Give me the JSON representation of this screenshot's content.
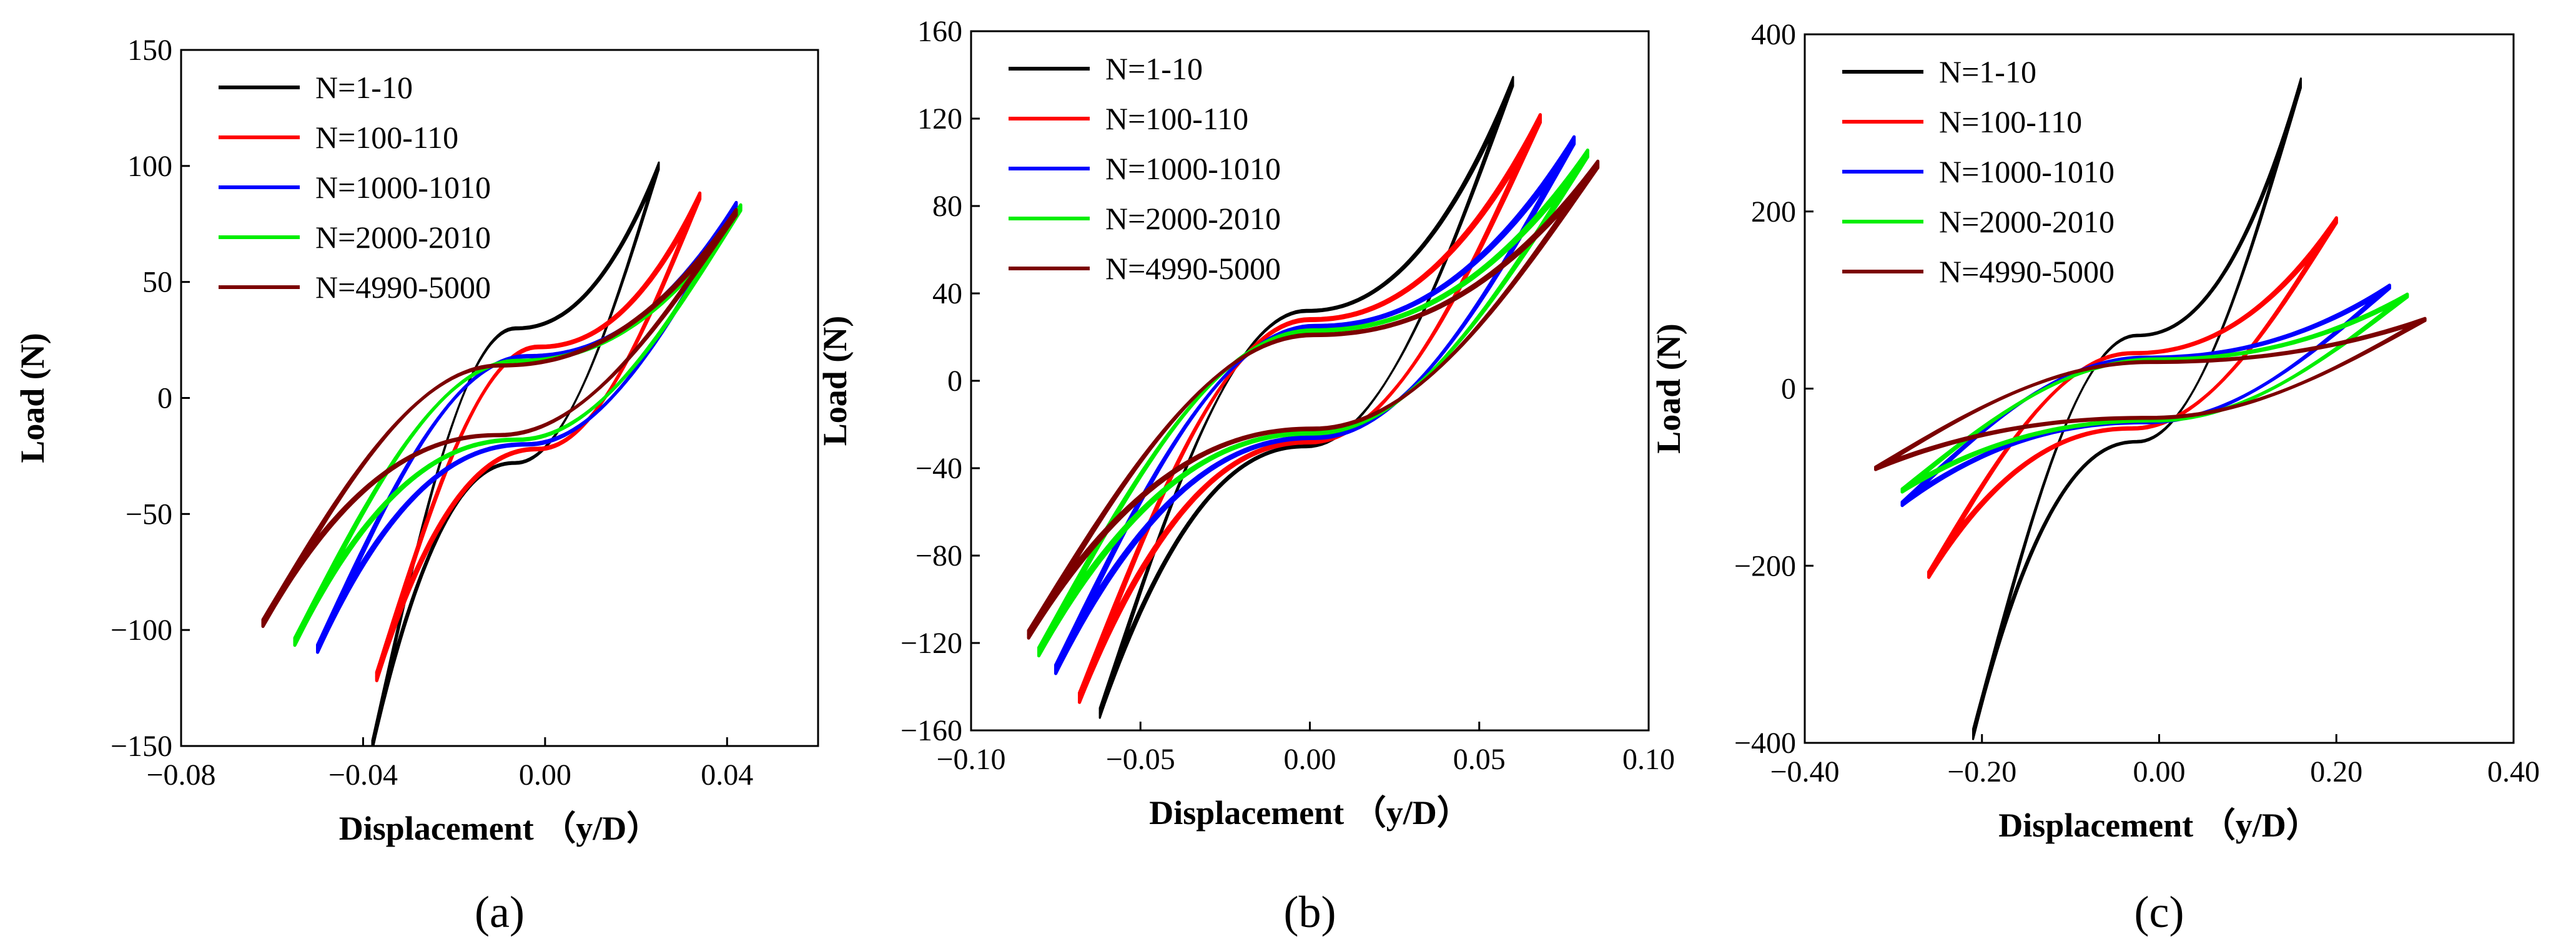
{
  "chart_data": [
    {
      "type": "line",
      "panel_label": "(a)",
      "xlabel": "Displacement （y/D）",
      "ylabel": "Load (N)",
      "xlim": [
        -0.08,
        0.06
      ],
      "ylim": [
        -150,
        150
      ],
      "x_ticks": [
        -0.08,
        -0.04,
        0.0,
        0.04
      ],
      "x_tick_labels": [
        "−0.08",
        "−0.04",
        "0.00",
        "0.04"
      ],
      "y_ticks": [
        -150,
        -100,
        -50,
        0,
        50,
        100,
        150
      ],
      "y_tick_labels": [
        "−150",
        "−100",
        "−50",
        "0",
        "50",
        "100",
        "150"
      ],
      "legend_position": "top-left",
      "series": [
        {
          "name": "N=1-10",
          "color": "#000000",
          "loop": {
            "x_min": -0.038,
            "x_max": 0.025,
            "y_max": 100,
            "y_min": -150,
            "upper_mid": 30,
            "lower_mid": -28
          }
        },
        {
          "name": "N=100-110",
          "color": "#ff0000",
          "loop": {
            "x_min": -0.037,
            "x_max": 0.034,
            "y_max": 87,
            "y_min": -120,
            "upper_mid": 22,
            "lower_mid": -22
          }
        },
        {
          "name": "N=1000-1010",
          "color": "#0000ff",
          "loop": {
            "x_min": -0.05,
            "x_max": 0.042,
            "y_max": 83,
            "y_min": -108,
            "upper_mid": 18,
            "lower_mid": -20
          }
        },
        {
          "name": "N=2000-2010",
          "color": "#00ee00",
          "loop": {
            "x_min": -0.055,
            "x_max": 0.043,
            "y_max": 82,
            "y_min": -105,
            "upper_mid": 16,
            "lower_mid": -18
          }
        },
        {
          "name": "N=4990-5000",
          "color": "#7b0000",
          "loop": {
            "x_min": -0.062,
            "x_max": 0.042,
            "y_max": 80,
            "y_min": -97,
            "upper_mid": 14,
            "lower_mid": -16
          }
        }
      ]
    },
    {
      "type": "line",
      "panel_label": "(b)",
      "xlabel": "Displacement （y/D）",
      "ylabel": "Load (N)",
      "xlim": [
        -0.1,
        0.1
      ],
      "ylim": [
        -160,
        160
      ],
      "x_ticks": [
        -0.1,
        -0.05,
        0.0,
        0.05,
        0.1
      ],
      "x_tick_labels": [
        "−0.10",
        "−0.05",
        "0.00",
        "0.05",
        "0.10"
      ],
      "y_ticks": [
        -160,
        -120,
        -80,
        -40,
        0,
        40,
        80,
        120,
        160
      ],
      "y_tick_labels": [
        "−160",
        "−120",
        "−80",
        "−40",
        "0",
        "40",
        "80",
        "120",
        "160"
      ],
      "legend_position": "top-left",
      "series": [
        {
          "name": "N=1-10",
          "color": "#000000",
          "loop": {
            "x_min": -0.062,
            "x_max": 0.06,
            "y_max": 137,
            "y_min": -152,
            "upper_mid": 32,
            "lower_mid": -30
          }
        },
        {
          "name": "N=100-110",
          "color": "#ff0000",
          "loop": {
            "x_min": -0.068,
            "x_max": 0.068,
            "y_max": 120,
            "y_min": -145,
            "upper_mid": 28,
            "lower_mid": -28
          }
        },
        {
          "name": "N=1000-1010",
          "color": "#0000ff",
          "loop": {
            "x_min": -0.075,
            "x_max": 0.078,
            "y_max": 110,
            "y_min": -132,
            "upper_mid": 25,
            "lower_mid": -26
          }
        },
        {
          "name": "N=2000-2010",
          "color": "#00ee00",
          "loop": {
            "x_min": -0.08,
            "x_max": 0.082,
            "y_max": 104,
            "y_min": -124,
            "upper_mid": 23,
            "lower_mid": -24
          }
        },
        {
          "name": "N=4990-5000",
          "color": "#7b0000",
          "loop": {
            "x_min": -0.083,
            "x_max": 0.085,
            "y_max": 99,
            "y_min": -116,
            "upper_mid": 21,
            "lower_mid": -22
          }
        }
      ]
    },
    {
      "type": "line",
      "panel_label": "(c)",
      "xlabel": "Displacement （y/D）",
      "ylabel": "Load (N)",
      "xlim": [
        -0.4,
        0.4
      ],
      "ylim": [
        -400,
        400
      ],
      "x_ticks": [
        -0.4,
        -0.2,
        0.0,
        0.2,
        0.4
      ],
      "x_tick_labels": [
        "−0.40",
        "−0.20",
        "0.00",
        "0.20",
        "0.40"
      ],
      "y_ticks": [
        -400,
        -200,
        0,
        200,
        400
      ],
      "y_tick_labels": [
        "−400",
        "−200",
        "0",
        "200",
        "400"
      ],
      "legend_position": "top-left",
      "series": [
        {
          "name": "N=1-10",
          "color": "#000000",
          "loop": {
            "x_min": -0.21,
            "x_max": 0.16,
            "y_max": 345,
            "y_min": -390,
            "upper_mid": 60,
            "lower_mid": -60
          }
        },
        {
          "name": "N=100-110",
          "color": "#ff0000",
          "loop": {
            "x_min": -0.26,
            "x_max": 0.2,
            "y_max": 190,
            "y_min": -210,
            "upper_mid": 40,
            "lower_mid": -45
          }
        },
        {
          "name": "N=1000-1010",
          "color": "#0000ff",
          "loop": {
            "x_min": -0.29,
            "x_max": 0.26,
            "y_max": 115,
            "y_min": -130,
            "upper_mid": 35,
            "lower_mid": -38
          }
        },
        {
          "name": "N=2000-2010",
          "color": "#00ee00",
          "loop": {
            "x_min": -0.29,
            "x_max": 0.28,
            "y_max": 105,
            "y_min": -115,
            "upper_mid": 33,
            "lower_mid": -36
          }
        },
        {
          "name": "N=4990-5000",
          "color": "#7b0000",
          "loop": {
            "x_min": -0.32,
            "x_max": 0.3,
            "y_max": 78,
            "y_min": -90,
            "upper_mid": 30,
            "lower_mid": -33
          }
        }
      ]
    }
  ]
}
